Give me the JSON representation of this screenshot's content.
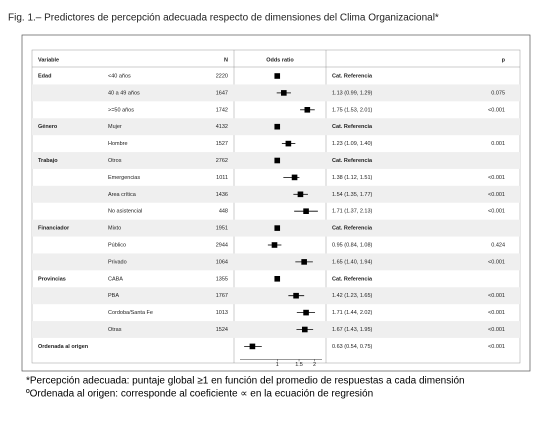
{
  "chart_data": {
    "type": "forest",
    "title": "Fig. 1.– Predictores de percepción adecuada respecto de dimensiones del Clima Organizacional*",
    "headers": {
      "variable": "Variable",
      "n": "N",
      "plot": "Odds ratio",
      "p": "p"
    },
    "xscale": "log",
    "xlim": [
      0.5,
      2.3
    ],
    "xticks": [
      1,
      1.5,
      2
    ],
    "color": "#000000",
    "rows": [
      {
        "group": "Edad",
        "category": "<40 años",
        "n": 2220,
        "estimate": 1,
        "ci": null,
        "label": "Cat. Referencia",
        "p": null
      },
      {
        "group": null,
        "category": "40 a 49 años",
        "n": 1647,
        "estimate": 1.13,
        "ci": [
          0.99,
          1.29
        ],
        "label": "1.13 (0.99, 1.29)",
        "p": "0.075"
      },
      {
        "group": null,
        "category": ">=50 años",
        "n": 1742,
        "estimate": 1.75,
        "ci": [
          1.53,
          2.01
        ],
        "label": "1.75 (1.53, 2.01)",
        "p": "<0.001"
      },
      {
        "group": "Género",
        "category": "Mujer",
        "n": 4132,
        "estimate": 1,
        "ci": null,
        "label": "Cat. Referencia",
        "p": null
      },
      {
        "group": null,
        "category": "Hombre",
        "n": 1527,
        "estimate": 1.23,
        "ci": [
          1.09,
          1.4
        ],
        "label": "1.23 (1.09, 1.40)",
        "p": "0.001"
      },
      {
        "group": "Trabajo",
        "category": "Otros",
        "n": 2762,
        "estimate": 1,
        "ci": null,
        "label": "Cat. Referencia",
        "p": null
      },
      {
        "group": null,
        "category": "Emergencias",
        "n": 1011,
        "estimate": 1.38,
        "ci": [
          1.12,
          1.51
        ],
        "label": "1.38 (1.12, 1.51)",
        "p": "<0.001"
      },
      {
        "group": null,
        "category": "Area crítica",
        "n": 1436,
        "estimate": 1.54,
        "ci": [
          1.35,
          1.77
        ],
        "label": "1.54 (1.35, 1.77)",
        "p": "<0.001"
      },
      {
        "group": null,
        "category": "No asistencial",
        "n": 448,
        "estimate": 1.71,
        "ci": [
          1.37,
          2.13
        ],
        "label": "1.71 (1.37, 2.13)",
        "p": "<0.001"
      },
      {
        "group": "Financiador",
        "category": "Mixto",
        "n": 1951,
        "estimate": 1,
        "ci": null,
        "label": "Cat. Referencia",
        "p": null
      },
      {
        "group": null,
        "category": "Público",
        "n": 2944,
        "estimate": 0.95,
        "ci": [
          0.84,
          1.08
        ],
        "label": "0.95 (0.84, 1.08)",
        "p": "0.424"
      },
      {
        "group": null,
        "category": "Privado",
        "n": 1064,
        "estimate": 1.65,
        "ci": [
          1.4,
          1.94
        ],
        "label": "1.65 (1.40, 1.94)",
        "p": "<0.001"
      },
      {
        "group": "Provincias",
        "category": "CABA",
        "n": 1355,
        "estimate": 1,
        "ci": null,
        "label": "Cat. Referencia",
        "p": null
      },
      {
        "group": null,
        "category": "PBA",
        "n": 1767,
        "estimate": 1.42,
        "ci": [
          1.23,
          1.65
        ],
        "label": "1.42 (1.23, 1.65)",
        "p": "<0.001"
      },
      {
        "group": null,
        "category": "Cordoba/Santa Fe",
        "n": 1013,
        "estimate": 1.71,
        "ci": [
          1.44,
          2.02
        ],
        "label": "1.71 (1.44, 2.02)",
        "p": "<0.001"
      },
      {
        "group": null,
        "category": "Otras",
        "n": 1524,
        "estimate": 1.67,
        "ci": [
          1.43,
          1.95
        ],
        "label": "1.67 (1.43, 1.95)",
        "p": "<0.001"
      },
      {
        "group": "Ordenada al origen",
        "category": null,
        "n": null,
        "estimate": 0.63,
        "ci": [
          0.54,
          0.75
        ],
        "label": "0.63 (0.54, 0.75)",
        "p": "<0.001"
      }
    ],
    "notes": [
      "*Percepción adecuada: puntaje global ≥1 en función del promedio de respuestas a cada dimensión",
      "ºOrdenada al origen: corresponde al coeficiente ∝ en la ecuación de regresión"
    ]
  }
}
